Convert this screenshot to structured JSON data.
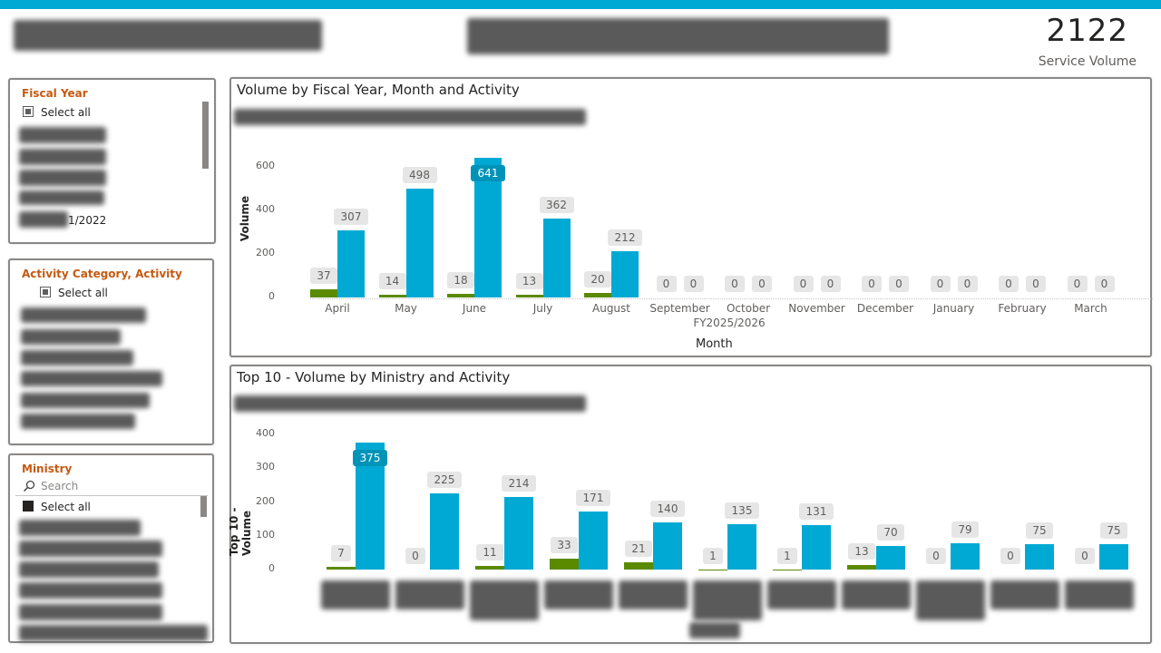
{
  "theme": {
    "accent": "#00A9D4",
    "activity_a": "#5A8A00",
    "activity_b": "#00A9D4",
    "slicer_title": "#C55A11"
  },
  "kpi": {
    "value": "2122",
    "label": "Service Volume"
  },
  "slicers": {
    "fiscal_year": {
      "title": "Fiscal Year",
      "select_all": "Select all",
      "partial_item": "1/2022"
    },
    "activity": {
      "title": "Activity Category, Activity",
      "select_all": "Select all"
    },
    "ministry": {
      "title": "Ministry",
      "search_placeholder": "Search",
      "select_all": "Select all",
      "search_icon": "search-icon"
    }
  },
  "chart_data": [
    {
      "type": "bar",
      "title": "Volume by Fiscal Year, Month and Activity",
      "xlabel": "Month",
      "ylabel": "Volume",
      "x_group_label": "FY2025/2026",
      "ylim": [
        0,
        600
      ],
      "yticks": [
        0,
        200,
        400,
        600
      ],
      "grid": false,
      "categories": [
        "April",
        "May",
        "June",
        "July",
        "August",
        "September",
        "October",
        "November",
        "December",
        "January",
        "February",
        "March"
      ],
      "series": [
        {
          "values": [
            37,
            14,
            18,
            13,
            20,
            0,
            0,
            0,
            0,
            0,
            0,
            0
          ],
          "color": "#5A8A00"
        },
        {
          "values": [
            307,
            498,
            641,
            362,
            212,
            0,
            0,
            0,
            0,
            0,
            0,
            0
          ],
          "color": "#00A9D4"
        }
      ]
    },
    {
      "type": "bar",
      "title": "Top 10 - Volume by Ministry and Activity",
      "ylabel": "Top 10 - Volume",
      "ylim": [
        0,
        400
      ],
      "yticks": [
        0,
        100,
        200,
        300,
        400
      ],
      "grid": false,
      "series": [
        {
          "values": [
            7,
            0,
            11,
            33,
            21,
            1,
            1,
            13,
            0,
            0,
            0
          ],
          "color": "#5A8A00"
        },
        {
          "values": [
            375,
            225,
            214,
            171,
            140,
            135,
            131,
            70,
            79,
            75,
            75
          ],
          "color": "#00A9D4"
        }
      ]
    }
  ]
}
